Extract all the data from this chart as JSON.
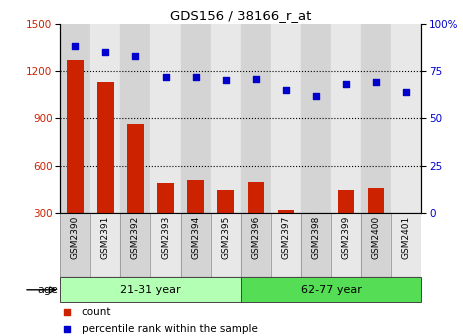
{
  "title": "GDS156 / 38166_r_at",
  "samples": [
    "GSM2390",
    "GSM2391",
    "GSM2392",
    "GSM2393",
    "GSM2394",
    "GSM2395",
    "GSM2396",
    "GSM2397",
    "GSM2398",
    "GSM2399",
    "GSM2400",
    "GSM2401"
  ],
  "counts": [
    1270,
    1130,
    865,
    490,
    510,
    450,
    500,
    320,
    295,
    450,
    460,
    295
  ],
  "percentiles": [
    88,
    85,
    83,
    72,
    72,
    70,
    71,
    65,
    62,
    68,
    69,
    64
  ],
  "ylim_left": [
    300,
    1500
  ],
  "ylim_right": [
    0,
    100
  ],
  "yticks_left": [
    300,
    600,
    900,
    1200,
    1500
  ],
  "yticks_right": [
    0,
    25,
    50,
    75,
    100
  ],
  "bar_color": "#cc2200",
  "dot_color": "#0000cc",
  "group1_label": "21-31 year",
  "group2_label": "62-77 year",
  "group1_count": 6,
  "group_color1": "#b3ffb3",
  "group_color2": "#55dd55",
  "age_label": "age",
  "legend_count": "count",
  "legend_pct": "percentile rank within the sample",
  "col_bg_even": "#d4d4d4",
  "col_bg_odd": "#e8e8e8"
}
